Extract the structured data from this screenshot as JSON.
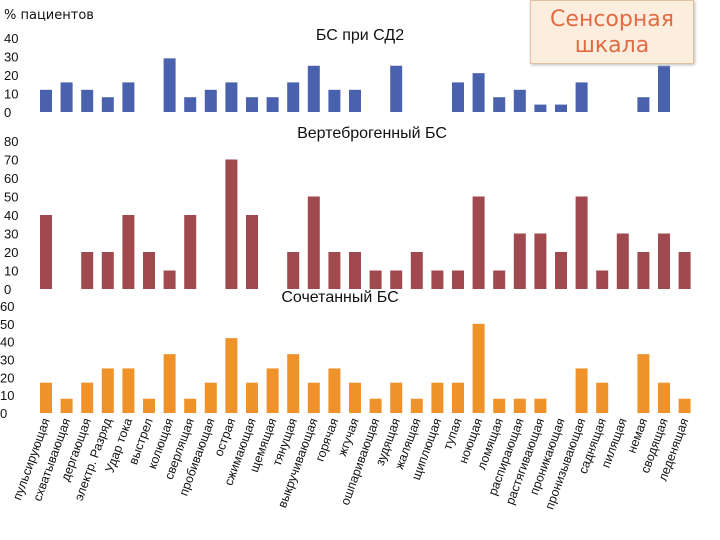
{
  "header": {
    "ylabel": "% пациентов"
  },
  "badge": {
    "line1": "Сенсорная",
    "line2": "шкала"
  },
  "chart_data": [
    {
      "type": "bar",
      "title": "БС при СД2",
      "color": "#4a62ad",
      "ylim": [
        0,
        40
      ],
      "ticks": [
        0,
        10,
        20,
        30,
        40
      ],
      "categories": [
        "пульсирующая",
        "схватывающая",
        "дергающая",
        "электр. Разряд",
        "Удар тока",
        "выстрел",
        "колющая",
        "сверлящая",
        "пробивающая",
        "острая",
        "сжимающая",
        "щемящая",
        "тянущая",
        "выкручивающая",
        "горячая",
        "жгучая",
        "ошпаривающая",
        "зудящая",
        "жалящая",
        "щиплющая",
        "тупая",
        "ноющая",
        "ломящая",
        "распирающая",
        "растягивающая",
        "проникающая",
        "пронизывающая",
        "саднящая",
        "пилящая",
        "немая",
        "сводящая",
        "леденящая"
      ],
      "values": [
        12,
        16,
        12,
        8,
        16,
        0,
        29,
        8,
        12,
        16,
        8,
        8,
        16,
        25,
        12,
        12,
        0,
        25,
        0,
        0,
        16,
        21,
        8,
        12,
        4,
        4,
        16,
        0,
        0,
        8,
        25,
        0
      ]
    },
    {
      "type": "bar",
      "title": "Вертеброгенный БС",
      "color": "#a04a4f",
      "ylim": [
        0,
        80
      ],
      "ticks": [
        0,
        10,
        20,
        30,
        40,
        50,
        60,
        70,
        80
      ],
      "categories": [
        "пульсирующая",
        "схватывающая",
        "дергающая",
        "электр. Разряд",
        "Удар тока",
        "выстрел",
        "колющая",
        "сверлящая",
        "пробивающая",
        "острая",
        "сжимающая",
        "щемящая",
        "тянущая",
        "выкручивающая",
        "горячая",
        "жгучая",
        "ошпаривающая",
        "зудящая",
        "жалящая",
        "щиплющая",
        "тупая",
        "ноющая",
        "ломящая",
        "распирающая",
        "растягивающая",
        "проникающая",
        "пронизывающая",
        "саднящая",
        "пилящая",
        "немая",
        "сводящая",
        "леденящая"
      ],
      "values": [
        40,
        0,
        20,
        20,
        40,
        20,
        10,
        40,
        0,
        70,
        40,
        0,
        20,
        50,
        20,
        20,
        10,
        10,
        20,
        10,
        10,
        50,
        10,
        30,
        30,
        20,
        50,
        10,
        30,
        20,
        30,
        20
      ]
    },
    {
      "type": "bar",
      "title": "Сочетанный БС",
      "color": "#f0922a",
      "ylim": [
        0,
        60
      ],
      "ticks": [
        0,
        10,
        20,
        30,
        40,
        50,
        60
      ],
      "categories": [
        "пульсирующая",
        "схватывающая",
        "дергающая",
        "электр. Разряд",
        "Удар тока",
        "выстрел",
        "колющая",
        "сверлящая",
        "пробивающая",
        "острая",
        "сжимающая",
        "щемящая",
        "тянущая",
        "выкручивающая",
        "горячая",
        "жгучая",
        "ошпаривающая",
        "зудящая",
        "жалящая",
        "щиплющая",
        "тупая",
        "ноющая",
        "ломящая",
        "распирающая",
        "растягивающая",
        "проникающая",
        "пронизывающая",
        "саднящая",
        "пилящая",
        "немая",
        "сводящая",
        "леденящая"
      ],
      "values": [
        17,
        8,
        17,
        25,
        25,
        8,
        33,
        8,
        17,
        42,
        17,
        25,
        33,
        17,
        25,
        17,
        8,
        17,
        8,
        17,
        17,
        50,
        8,
        8,
        8,
        0,
        25,
        17,
        0,
        33,
        17,
        8
      ]
    }
  ]
}
